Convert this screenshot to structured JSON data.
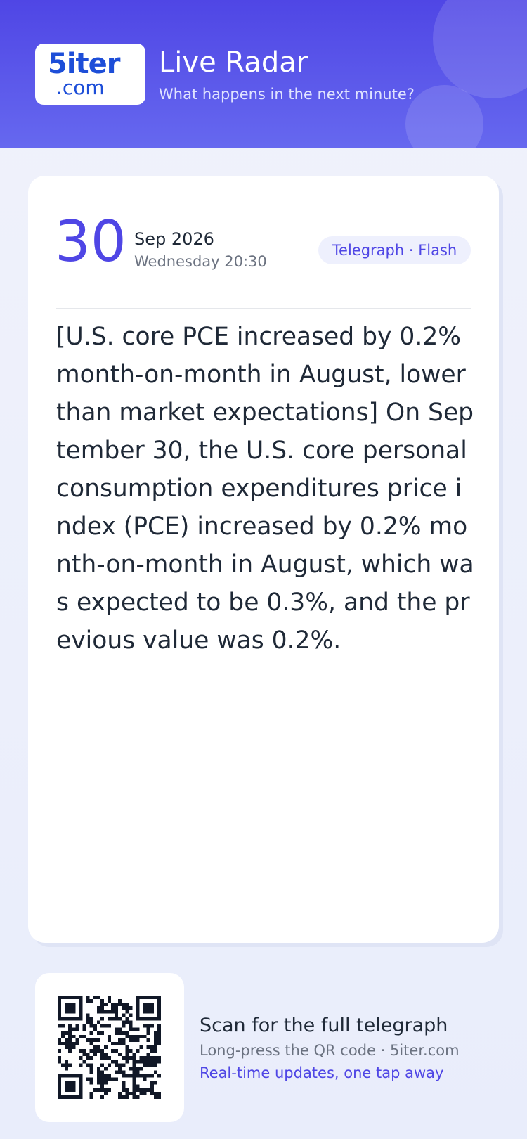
{
  "header": {
    "logo_main": "5iter",
    "logo_sub": ".com",
    "title": "Live Radar",
    "subtitle": "What happens in the next minute?"
  },
  "card": {
    "day": "30",
    "month_year": "Sep 2026",
    "weekday_time": "Wednesday 20:30",
    "tag": "Telegraph · Flash",
    "body": "[U.S. core PCE increased by 0.2% month-on-month in August, lower than market expectations] On September 30, the U.S. core personal consumption expenditures price index (PCE) increased by 0.2% month-on-month in August, which was expected to be 0.3%, and the previous value was 0.2%."
  },
  "footer": {
    "title": "Scan for the full telegraph",
    "line1": "Long-press the QR code · 5iter.com",
    "line2": "Real-time updates, one tap away"
  }
}
